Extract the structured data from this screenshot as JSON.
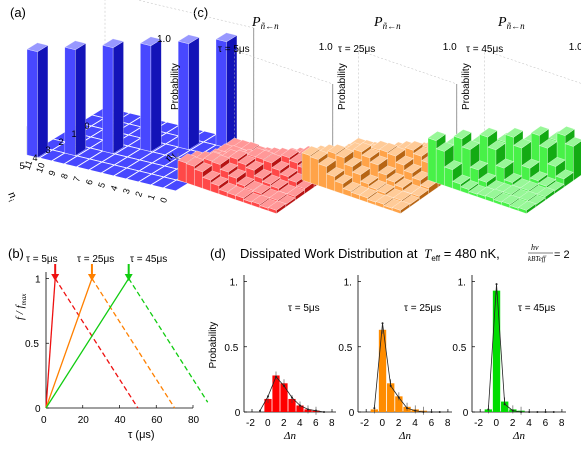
{
  "panels": {
    "a": {
      "label": "(a)",
      "probability_label": "Probability",
      "ymax_label": "1.0",
      "ylim": [
        0,
        1
      ],
      "nf_label": "n",
      "nf_sub": "f",
      "ni_label": "n",
      "ni_sub": "i",
      "nf_ticks": [
        "0",
        "1",
        "2",
        "3",
        "4",
        "5",
        "6",
        "7",
        "8",
        "9",
        "10",
        "11"
      ],
      "ni_ticks": [
        "0",
        "1",
        "2",
        "3",
        "4",
        "5"
      ],
      "diag_values": [
        0.92,
        0.92,
        0.92,
        0.92,
        0.92,
        0.92
      ],
      "color": "#1a1aff"
    },
    "c": {
      "label": "(c)",
      "surfaces": [
        {
          "title_main": "P",
          "title_sub": "ñ←n",
          "tau": "τ = 5μs",
          "ymax": "1.0",
          "ylabel": "Probability",
          "color": "#ff1a1a",
          "peak": 0.35
        },
        {
          "title_main": "P",
          "title_sub": "ñ←n",
          "tau": "τ = 25μs",
          "ymax": "1.0",
          "ylabel": "Probability",
          "color": "#ff8c1a",
          "peak": 0.5
        },
        {
          "title_main": "P",
          "title_sub": "ñ←n",
          "tau": "τ = 45μs",
          "ymax": "1.0",
          "ylabel": "Probability",
          "color": "#1aee1a",
          "peak": 0.8
        }
      ]
    },
    "b": {
      "label": "(b)",
      "ylabel": "f / f",
      "ylabel_sub": "max",
      "xlabel": "τ (μs)",
      "tau_labels": [
        "τ = 5μs",
        "τ = 25μs",
        "τ = 45μs"
      ],
      "x_ticks": [
        "0",
        "20",
        "40",
        "60",
        "80"
      ],
      "y_ticks": [
        "0",
        "0.5",
        "1"
      ],
      "chart_data": {
        "type": "line",
        "xlabel": "τ (μs)",
        "ylabel": "f / fmax",
        "xlim": [
          0,
          80
        ],
        "ylim": [
          0,
          1.05
        ],
        "series": [
          {
            "tau": 5,
            "color": "#ee1111",
            "x_ramp": [
              0,
              5
            ],
            "y_ramp": [
              0,
              1
            ],
            "x_down": [
              5,
              50
            ],
            "y_down": [
              1,
              0
            ]
          },
          {
            "tau": 25,
            "color": "#ff8000",
            "x_ramp": [
              0,
              25
            ],
            "y_ramp": [
              0,
              1
            ],
            "x_down": [
              25,
              70
            ],
            "y_down": [
              1,
              0
            ]
          },
          {
            "tau": 45,
            "color": "#11cc11",
            "x_ramp": [
              0,
              45
            ],
            "y_ramp": [
              0,
              1
            ],
            "x_down": [
              45,
              90
            ],
            "y_down": [
              1,
              0
            ]
          }
        ]
      }
    },
    "d": {
      "label": "(d)",
      "title_prefix": "Dissipated Work Distribution at",
      "title_T": "T",
      "title_T_sub": "eff",
      "title_value": " = 480 nK, ",
      "title_frac_num": "hν",
      "title_frac_den": "kBTeff",
      "title_eq": " = 2",
      "ylabel": "Probability",
      "xlabel": "Δn",
      "x_ticks": [
        "-2",
        "0",
        "2",
        "4",
        "6",
        "8"
      ],
      "y_ticks": [
        "0",
        "0.5",
        "1."
      ],
      "chart_data": [
        {
          "type": "bar",
          "tau": "τ = 5μs",
          "color": "#ff0000",
          "x": [
            -1,
            0,
            1,
            2,
            3,
            4,
            5,
            6,
            7
          ],
          "values": [
            0.0,
            0.1,
            0.28,
            0.22,
            0.1,
            0.05,
            0.02,
            0.01,
            0.0
          ],
          "theory": [
            0.01,
            0.12,
            0.27,
            0.2,
            0.11,
            0.05,
            0.02,
            0.01,
            0.0
          ]
        },
        {
          "type": "bar",
          "tau": "τ = 25μs",
          "color": "#ff8c00",
          "x": [
            -1,
            0,
            1,
            2,
            3,
            4,
            5,
            6,
            7
          ],
          "values": [
            0.02,
            0.63,
            0.22,
            0.12,
            0.04,
            0.02,
            0.01,
            0.0,
            0.0
          ],
          "theory": [
            0.03,
            0.68,
            0.2,
            0.11,
            0.03,
            0.01,
            0.0,
            0.0,
            0.0
          ]
        },
        {
          "type": "bar",
          "tau": "τ = 45μs",
          "color": "#00dd00",
          "x": [
            -1,
            0,
            1,
            2,
            3,
            4,
            5,
            6,
            7
          ],
          "values": [
            0.02,
            0.93,
            0.08,
            0.02,
            0.01,
            0.0,
            0.0,
            0.0,
            0.0
          ],
          "theory": [
            0.02,
            0.98,
            0.06,
            0.01,
            0.0,
            0.0,
            0.0,
            0.0,
            0.0
          ]
        }
      ]
    }
  }
}
